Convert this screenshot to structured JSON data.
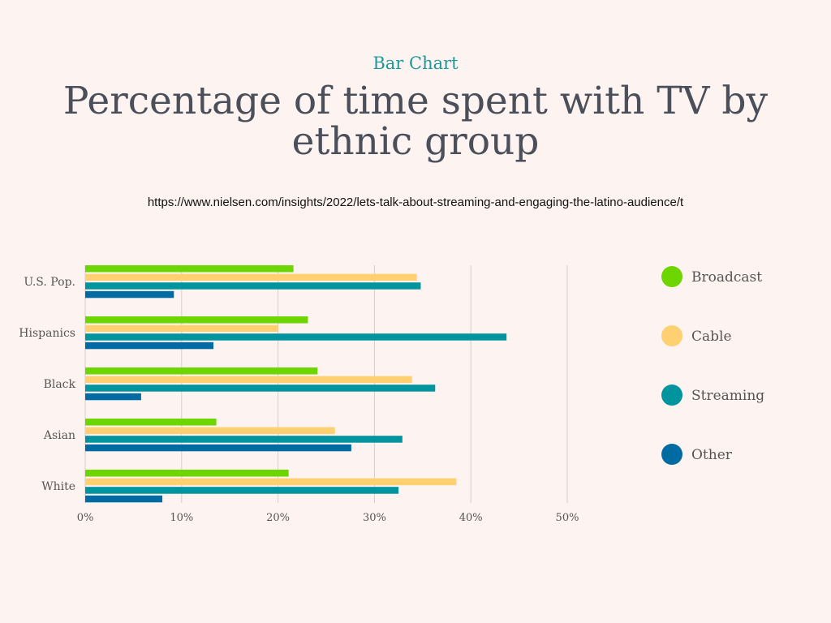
{
  "chart_data": {
    "type": "bar",
    "orientation": "horizontal",
    "kicker": "Bar Chart",
    "title": "Percentage of time spent with TV by ethnic group",
    "source": "https://www.nielsen.com/insights/2022/lets-talk-about-streaming-and-engaging-the-latino-audience/t",
    "categories": [
      "U.S. Pop.",
      "Hispanics",
      "Black",
      "Asian",
      "White"
    ],
    "series": [
      {
        "name": "Broadcast",
        "color": "#6dd600",
        "values": [
          21.6,
          23.1,
          24.1,
          13.6,
          21.1
        ]
      },
      {
        "name": "Cable",
        "color": "#ffd072",
        "values": [
          34.4,
          20.0,
          33.9,
          25.9,
          38.5
        ]
      },
      {
        "name": "Streaming",
        "color": "#00949e",
        "values": [
          34.8,
          43.7,
          36.3,
          32.9,
          32.5
        ]
      },
      {
        "name": "Other",
        "color": "#006ba2",
        "values": [
          9.2,
          13.3,
          5.8,
          27.6,
          8.0
        ]
      }
    ],
    "xlim": [
      0,
      50
    ],
    "xticks": [
      "0%",
      "10%",
      "20%",
      "30%",
      "40%",
      "50%"
    ],
    "grid": true,
    "legend": "right"
  }
}
